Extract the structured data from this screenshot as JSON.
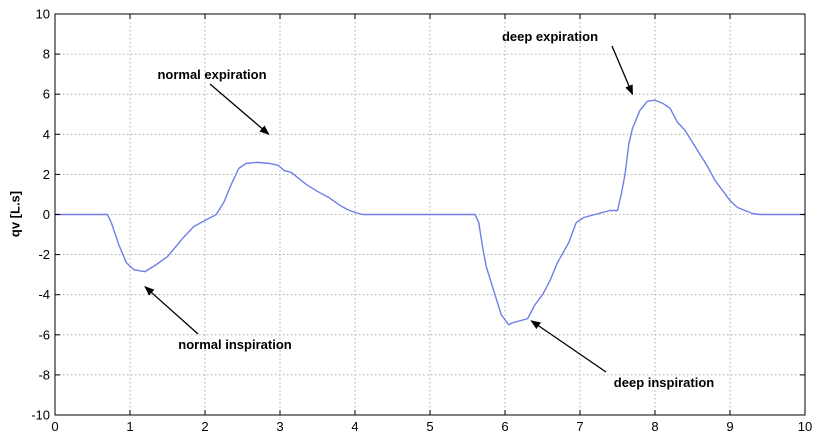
{
  "chart_data": {
    "type": "line",
    "ylabel": "qv [L.s]",
    "xlim": [
      0,
      10
    ],
    "ylim": [
      -10,
      10
    ],
    "xticks": [
      0,
      1,
      2,
      3,
      4,
      5,
      6,
      7,
      8,
      9,
      10
    ],
    "yticks": [
      10,
      8,
      6,
      4,
      2,
      0,
      -2,
      -4,
      -6,
      -8,
      -10
    ],
    "grid": true,
    "series": [
      {
        "color": "#6f7fe6",
        "x": [
          0,
          0.7,
          0.75,
          0.85,
          0.95,
          1.05,
          1.2,
          1.35,
          1.5,
          1.7,
          1.85,
          2.0,
          2.15,
          2.25,
          2.35,
          2.45,
          2.55,
          2.7,
          2.85,
          2.98,
          3.05,
          3.15,
          3.25,
          3.35,
          3.5,
          3.65,
          3.8,
          3.9,
          4.0,
          4.1,
          4.3,
          5.0,
          5.6,
          5.65,
          5.7,
          5.75,
          5.85,
          5.95,
          6.05,
          6.1,
          6.2,
          6.3,
          6.4,
          6.5,
          6.6,
          6.7,
          6.85,
          6.95,
          7.05,
          7.15,
          7.3,
          7.4,
          7.5,
          7.55,
          7.6,
          7.65,
          7.7,
          7.8,
          7.9,
          8.0,
          8.1,
          8.2,
          8.3,
          8.4,
          8.5,
          8.6,
          8.7,
          8.8,
          8.9,
          9.0,
          9.1,
          9.2,
          9.3,
          9.4,
          9.6,
          10.0
        ],
        "y": [
          0,
          0,
          -0.4,
          -1.5,
          -2.4,
          -2.75,
          -2.85,
          -2.5,
          -2.1,
          -1.2,
          -0.6,
          -0.3,
          0.0,
          0.6,
          1.5,
          2.3,
          2.55,
          2.6,
          2.55,
          2.45,
          2.2,
          2.1,
          1.8,
          1.5,
          1.15,
          0.85,
          0.45,
          0.25,
          0.1,
          0.0,
          0.0,
          0.0,
          0.0,
          -0.4,
          -1.6,
          -2.6,
          -3.8,
          -5.0,
          -5.5,
          -5.4,
          -5.3,
          -5.2,
          -4.5,
          -4.0,
          -3.3,
          -2.4,
          -1.4,
          -0.4,
          -0.15,
          -0.05,
          0.1,
          0.2,
          0.2,
          1.0,
          2.0,
          3.5,
          4.3,
          5.2,
          5.65,
          5.7,
          5.55,
          5.3,
          4.6,
          4.2,
          3.6,
          3.0,
          2.4,
          1.7,
          1.2,
          0.7,
          0.35,
          0.2,
          0.05,
          0.0,
          0.0,
          0.0
        ]
      }
    ],
    "annotations": [
      {
        "text": "normal expiration",
        "target": [
          2.85,
          4.0
        ]
      },
      {
        "text": "normal inspiration",
        "target": [
          1.2,
          -3.6
        ]
      },
      {
        "text": "deep expiration",
        "target": [
          7.7,
          6.0
        ]
      },
      {
        "text": "deep inspiration",
        "target": [
          6.35,
          -5.3
        ]
      }
    ]
  }
}
